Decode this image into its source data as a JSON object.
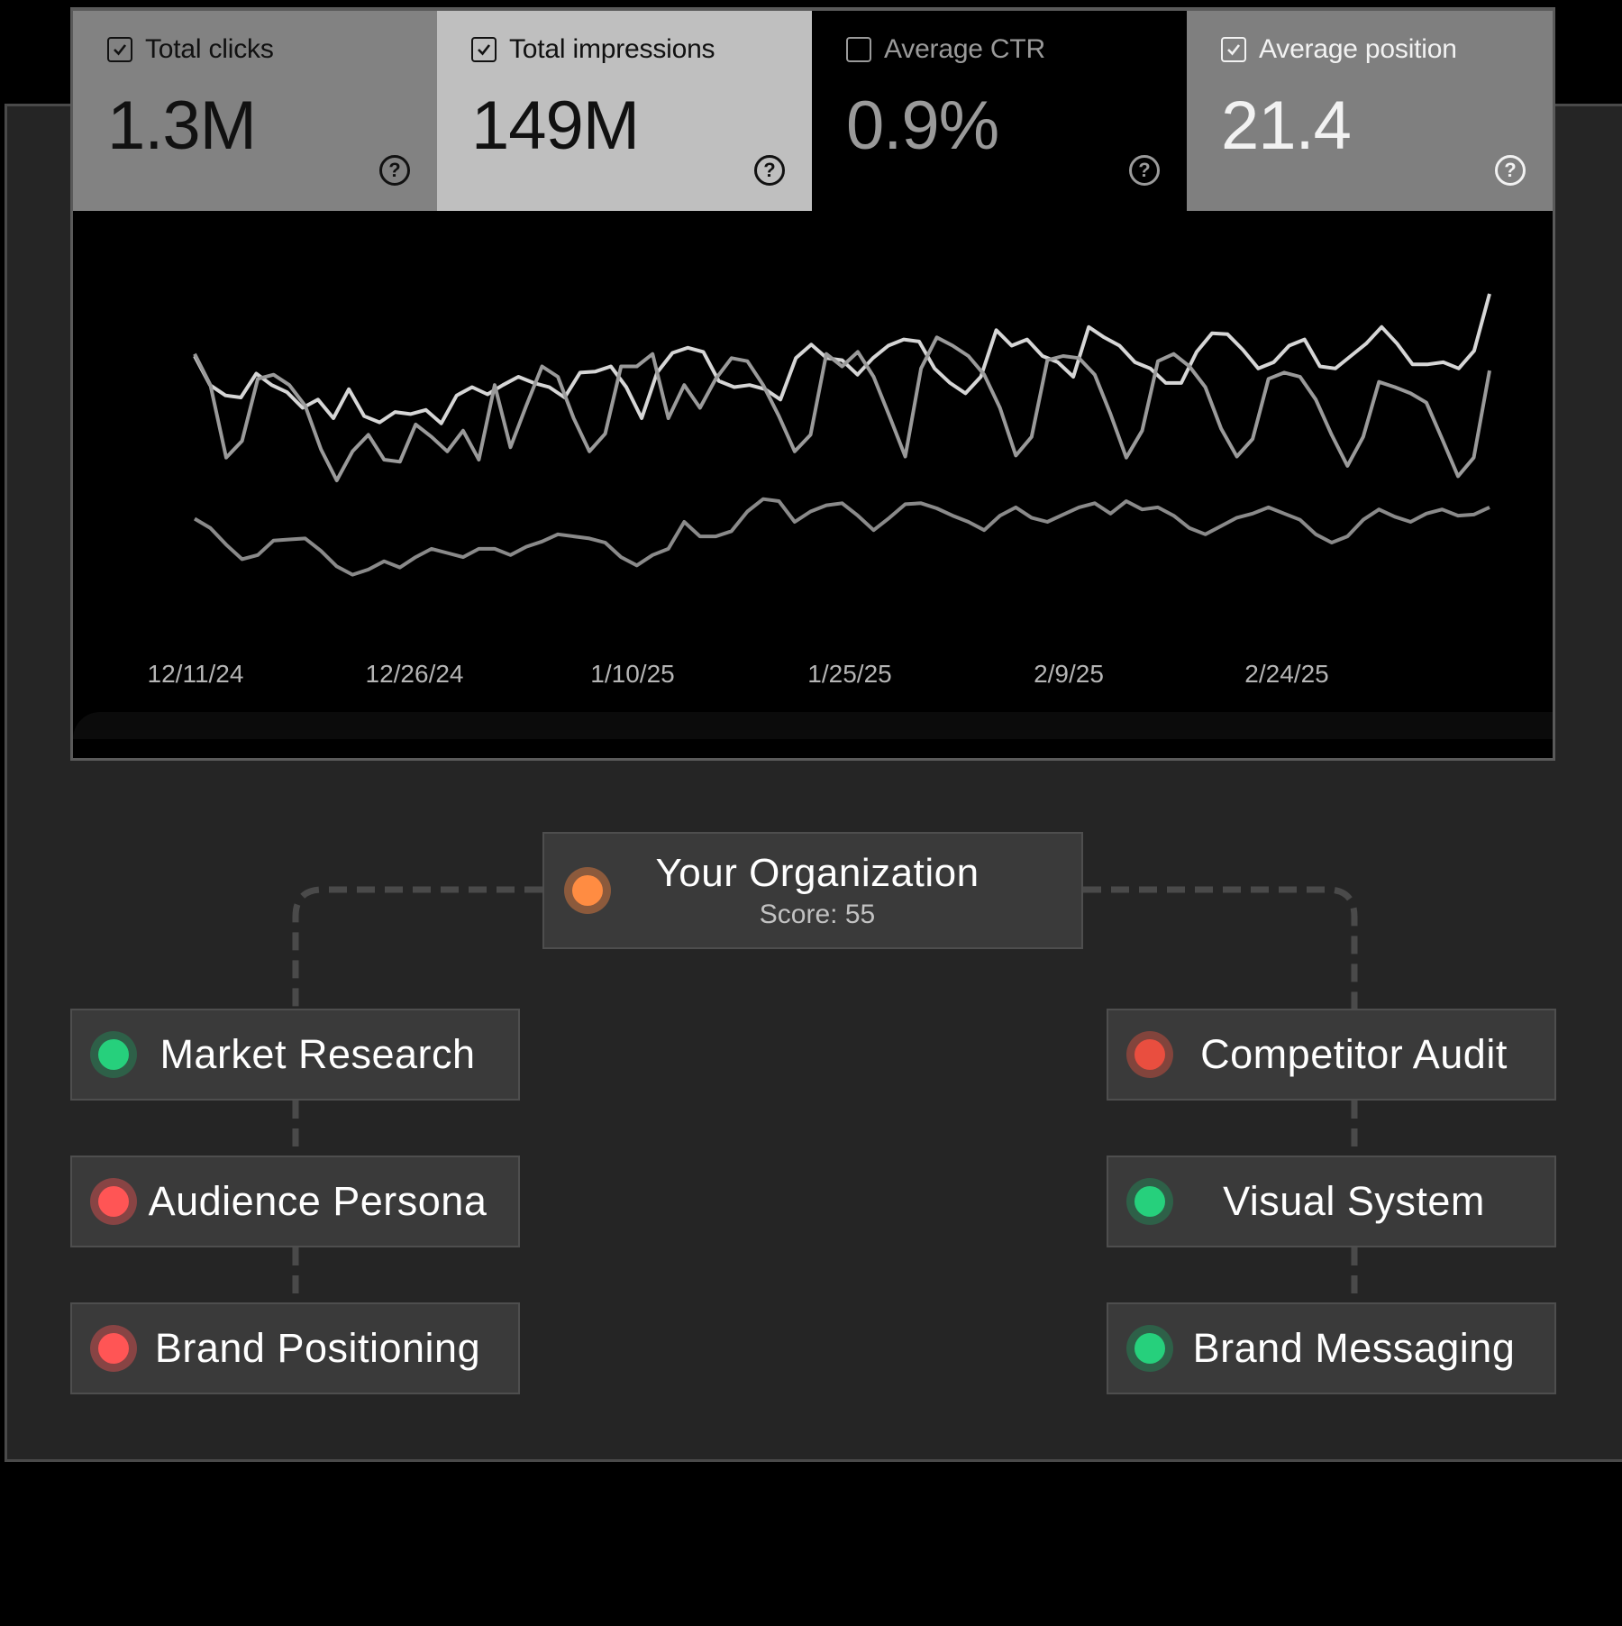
{
  "metrics": [
    {
      "label": "Total clicks",
      "value": "1.3M",
      "checked": true,
      "bg": "#828282",
      "fg": "#111111",
      "icon": "help-icon"
    },
    {
      "label": "Total impressions",
      "value": "149M",
      "checked": true,
      "bg": "#bfbfbf",
      "fg": "#111111",
      "icon": "help-icon"
    },
    {
      "label": "Average CTR",
      "value": "0.9%",
      "checked": false,
      "bg": "#000000",
      "fg": "#9a9a9a",
      "icon": "help-icon"
    },
    {
      "label": "Average position",
      "value": "21.4",
      "checked": true,
      "bg": "#7f7f7f",
      "fg": "#f2f2f2",
      "icon": "help-icon"
    }
  ],
  "chart_data": {
    "type": "line",
    "title": "",
    "xlabel": "",
    "ylabel": "",
    "grid": false,
    "legend": "none",
    "x_tick_labels": [
      "12/11/24",
      "12/26/24",
      "1/10/25",
      "1/25/25",
      "2/9/25",
      "2/24/25"
    ],
    "series": [
      {
        "name": "Average position",
        "color": "#d6d6d6",
        "values": [
          340,
          368,
          378,
          380,
          357,
          368,
          375,
          390,
          382,
          400,
          372,
          398,
          404,
          394,
          396,
          392,
          405,
          378,
          370,
          377,
          368,
          360,
          366,
          370,
          380,
          356,
          355,
          350,
          370,
          400,
          356,
          337,
          332,
          336,
          364,
          370,
          368,
          372,
          382,
          342,
          329,
          342,
          344,
          358,
          342,
          330,
          324,
          326,
          352,
          366,
          376,
          360,
          315,
          330,
          324,
          340,
          346,
          360,
          312,
          322,
          330,
          346,
          352,
          366,
          366,
          336,
          318,
          319,
          334,
          352,
          346,
          330,
          324,
          350,
          352,
          340,
          328,
          312,
          328,
          348,
          348,
          346,
          352,
          335,
          280
        ]
      },
      {
        "name": "Total impressions",
        "color": "#9a9a9a",
        "values": [
          338,
          368,
          438,
          422,
          362,
          358,
          368,
          388,
          430,
          460,
          432,
          416,
          440,
          442,
          406,
          418,
          432,
          412,
          440,
          368,
          428,
          388,
          350,
          360,
          400,
          432,
          415,
          350,
          350,
          338,
          400,
          368,
          390,
          362,
          342,
          345,
          368,
          398,
          432,
          416,
          338,
          350,
          336,
          360,
          398,
          437,
          352,
          322,
          330,
          340,
          358,
          390,
          436,
          418,
          344,
          340,
          342,
          358,
          396,
          438,
          412,
          345,
          338,
          350,
          370,
          410,
          437,
          420,
          362,
          356,
          360,
          382,
          416,
          446,
          418,
          365,
          370,
          376,
          385,
          420,
          456,
          438,
          354
        ]
      },
      {
        "name": "Total clicks",
        "color": "#8a8a8a",
        "values": [
          497,
          506,
          522,
          536,
          532,
          518,
          517,
          516,
          528,
          543,
          551,
          546,
          538,
          544,
          534,
          526,
          530,
          534,
          526,
          526,
          532,
          524,
          519,
          512,
          514,
          516,
          520,
          534,
          542,
          532,
          526,
          500,
          514,
          514,
          509,
          490,
          478,
          480,
          500,
          490,
          484,
          482,
          494,
          508,
          496,
          483,
          482,
          487,
          494,
          500,
          508,
          494,
          486,
          496,
          500,
          493,
          486,
          482,
          492,
          480,
          488,
          486,
          494,
          506,
          512,
          504,
          496,
          492,
          486,
          492,
          498,
          512,
          520,
          514,
          498,
          488,
          495,
          500,
          492,
          488,
          494,
          493,
          486
        ]
      }
    ]
  },
  "org": {
    "root": {
      "title": "Your Organization",
      "score": "Score: 55",
      "status_color": "#ff8c42",
      "ring_color": "#8c5a3c"
    },
    "left": [
      {
        "title": "Market Research",
        "status": "good",
        "status_color": "#26d07c",
        "ring_color": "#2e6048"
      },
      {
        "title": "Audience Persona",
        "status": "bad",
        "status_color": "#ff5555",
        "ring_color": "#884444"
      },
      {
        "title": "Brand Positioning",
        "status": "bad",
        "status_color": "#ff5555",
        "ring_color": "#884444"
      }
    ],
    "right": [
      {
        "title": "Competitor Audit",
        "status": "bad",
        "status_color": "#e94e3f",
        "ring_color": "#82443c"
      },
      {
        "title": "Visual System",
        "status": "good",
        "status_color": "#26d07c",
        "ring_color": "#2e6048"
      },
      {
        "title": "Brand Messaging",
        "status": "good",
        "status_color": "#26d07c",
        "ring_color": "#2e6048"
      }
    ]
  }
}
